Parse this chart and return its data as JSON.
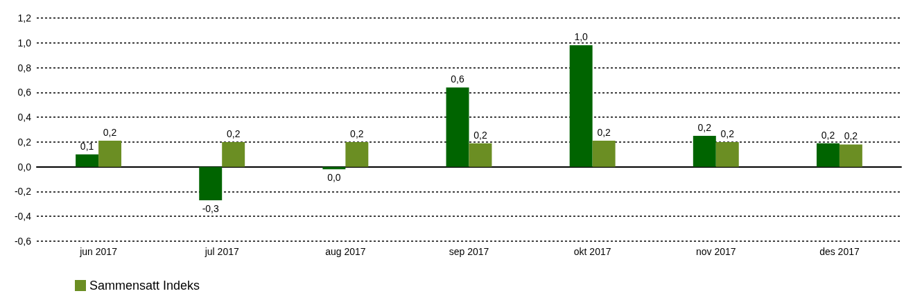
{
  "chart_data": {
    "type": "bar",
    "categories": [
      "jun 2017",
      "jul 2017",
      "aug 2017",
      "sep 2017",
      "okt 2017",
      "nov 2017",
      "des 2017"
    ],
    "series": [
      {
        "color": "#006400",
        "values": [
          0.1,
          -0.27,
          -0.02,
          0.64,
          0.98,
          0.25,
          0.19
        ],
        "value_labels": [
          "0,1",
          "-0,3",
          "0,0",
          "0,6",
          "1,0",
          "0,2",
          "0,2"
        ]
      },
      {
        "name": "Sammensatt Indeks",
        "color": "#6b8e23",
        "values": [
          0.21,
          0.2,
          0.2,
          0.19,
          0.21,
          0.2,
          0.18
        ],
        "value_labels": [
          "0,2",
          "0,2",
          "0,2",
          "0,2",
          "0,2",
          "0,2",
          "0,2"
        ]
      }
    ],
    "ylim": [
      -0.6,
      1.2
    ],
    "yticks": [
      {
        "value": -0.6,
        "label": "-0,6"
      },
      {
        "value": -0.4,
        "label": "-0,4"
      },
      {
        "value": -0.2,
        "label": "-0,2"
      },
      {
        "value": 0,
        "label": "0,0"
      },
      {
        "value": 0.2,
        "label": "0,2"
      },
      {
        "value": 0.4,
        "label": "0,4"
      },
      {
        "value": 0.6,
        "label": "0,6"
      },
      {
        "value": 0.8,
        "label": "0,8"
      },
      {
        "value": 1.0,
        "label": "1,0"
      },
      {
        "value": 1.2,
        "label": "1,2"
      }
    ],
    "grid": "y",
    "legend": "bottom left"
  }
}
